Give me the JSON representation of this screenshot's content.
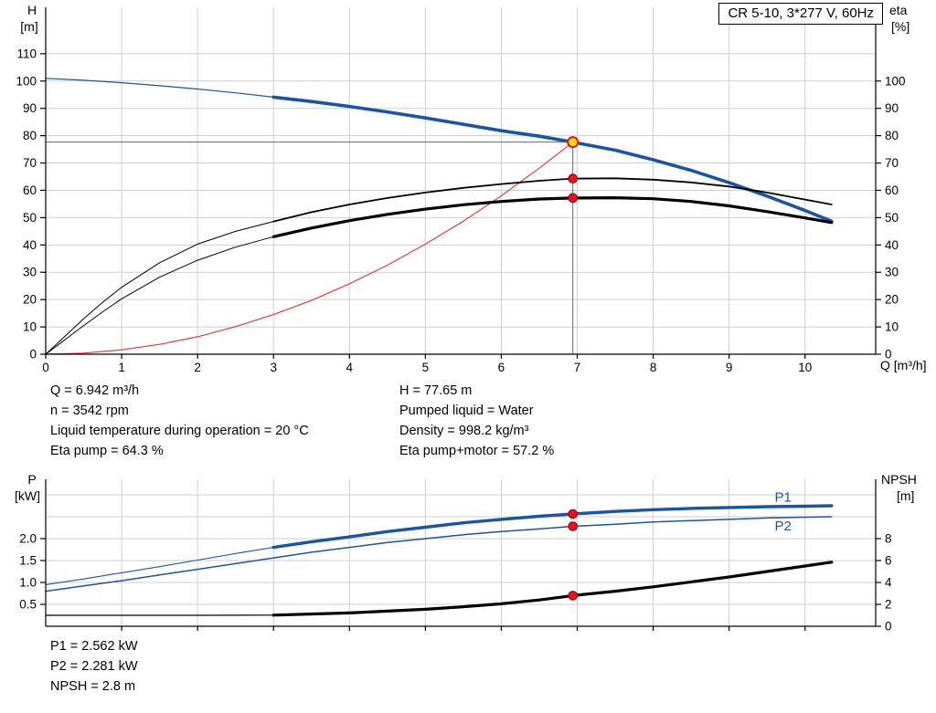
{
  "title_box": "CR 5-10, 3*277 V, 60Hz",
  "info_top": {
    "left": [
      "Q = 6.942 m³/h",
      "n = 3542 rpm",
      "Liquid temperature during operation = 20 °C",
      "Eta pump = 64.3 %"
    ],
    "right": [
      "H = 77.65 m",
      "Pumped liquid = Water",
      "Density = 998.2 kg/m³",
      "Eta pump+motor = 57.2 %"
    ]
  },
  "info_bottom": [
    "P1 = 2.562 kW",
    "P2 = 2.281 kW",
    "NPSH = 2.8 m"
  ],
  "colors": {
    "curve_blue": "#1b55a0",
    "curve_red": "#d84040",
    "dot_red": "#e8111c",
    "dot_ring": "#8f0008",
    "duty_yellow": "#ffe100",
    "grid": "#cfcfcf",
    "axis": "#000000",
    "crosshair": "#666666"
  },
  "chart_data": [
    {
      "id": "top",
      "type": "line",
      "title": "CR 5-10, 3*277 V, 60Hz",
      "x_axis": {
        "title": "Q [m³/h]",
        "lim": [
          0,
          10.93
        ],
        "grid": [
          1,
          2,
          3,
          4,
          5,
          6,
          7,
          8,
          9,
          10
        ],
        "ticks": {
          "values": [
            0,
            1,
            2,
            3,
            4,
            5,
            6,
            7,
            8,
            9,
            10
          ],
          "labels": [
            "0",
            "1",
            "2",
            "3",
            "4",
            "5",
            "6",
            "7",
            "8",
            "9",
            "10"
          ]
        }
      },
      "y_left": {
        "title": [
          "H",
          "[m]"
        ],
        "lim": [
          0,
          127
        ],
        "grid": [
          10,
          20,
          30,
          40,
          50,
          60,
          70,
          80,
          90,
          100,
          110
        ],
        "ticks": {
          "values": [
            0,
            10,
            20,
            30,
            40,
            50,
            60,
            70,
            80,
            90,
            100,
            110
          ],
          "labels": [
            "0",
            "10",
            "20",
            "30",
            "40",
            "50",
            "60",
            "70",
            "80",
            "90",
            "100",
            "110"
          ]
        }
      },
      "y_right": {
        "title": [
          "eta",
          "[%]"
        ],
        "lim": [
          0,
          127
        ],
        "ticks": {
          "values": [
            0,
            10,
            20,
            30,
            40,
            50,
            60,
            70,
            80,
            90,
            100
          ],
          "labels": [
            "0",
            "10",
            "20",
            "30",
            "40",
            "50",
            "60",
            "70",
            "80",
            "90",
            "100"
          ]
        }
      },
      "crosshair": {
        "x": 6.942,
        "y": 77.65
      },
      "series": [
        {
          "name": "head-curve-lead",
          "axis": "left",
          "color": "#1b55a0",
          "width": 1.2,
          "points": [
            [
              0,
              101
            ],
            [
              0.5,
              100.3
            ],
            [
              1,
              99.4
            ],
            [
              1.5,
              98.3
            ],
            [
              2,
              97.1
            ],
            [
              2.5,
              95.7
            ],
            [
              3,
              94.1
            ]
          ]
        },
        {
          "name": "head-curve",
          "axis": "left",
          "color": "#1b55a0",
          "width": 3.6,
          "points": [
            [
              3,
              94.1
            ],
            [
              3.5,
              92.5
            ],
            [
              4,
              90.7
            ],
            [
              4.5,
              88.7
            ],
            [
              5,
              86.5
            ],
            [
              5.5,
              84.2
            ],
            [
              6,
              81.8
            ],
            [
              6.5,
              79.8
            ],
            [
              6.942,
              77.65
            ],
            [
              7.5,
              74.7
            ],
            [
              8,
              71.2
            ],
            [
              8.5,
              67.3
            ],
            [
              9,
              62.8
            ],
            [
              9.5,
              57.9
            ],
            [
              10,
              52.6
            ],
            [
              10.35,
              48.7
            ]
          ]
        },
        {
          "name": "system-curve",
          "axis": "left",
          "color": "#d84040",
          "width": 1.2,
          "points": [
            [
              0,
              0
            ],
            [
              0.5,
              0.4
            ],
            [
              1,
              1.6
            ],
            [
              1.5,
              3.6
            ],
            [
              2,
              6.4
            ],
            [
              2.5,
              10.1
            ],
            [
              3,
              14.5
            ],
            [
              3.5,
              19.7
            ],
            [
              4,
              25.8
            ],
            [
              4.5,
              32.6
            ],
            [
              5,
              40.3
            ],
            [
              5.5,
              48.7
            ],
            [
              6,
              58.0
            ],
            [
              6.5,
              68.1
            ],
            [
              6.942,
              77.65
            ]
          ]
        },
        {
          "name": "eta-pump-lead",
          "axis": "right",
          "color": "#000000",
          "width": 1,
          "points": [
            [
              0,
              0
            ],
            [
              0.25,
              6.5
            ],
            [
              0.5,
              13
            ],
            [
              0.75,
              19
            ],
            [
              1,
              24.5
            ],
            [
              1.5,
              33.5
            ],
            [
              2,
              40.3
            ],
            [
              2.5,
              45
            ],
            [
              3,
              48.6
            ]
          ]
        },
        {
          "name": "eta-pump",
          "axis": "right",
          "color": "#000000",
          "width": 1.8,
          "points": [
            [
              3,
              48.6
            ],
            [
              3.5,
              52
            ],
            [
              4,
              54.8
            ],
            [
              4.5,
              57.2
            ],
            [
              5,
              59.2
            ],
            [
              5.5,
              60.9
            ],
            [
              6,
              62.3
            ],
            [
              6.5,
              63.5
            ],
            [
              6.942,
              64.3
            ],
            [
              7.5,
              64.4
            ],
            [
              8,
              63.9
            ],
            [
              8.5,
              62.9
            ],
            [
              9,
              61.4
            ],
            [
              9.5,
              59.2
            ],
            [
              10,
              56.6
            ],
            [
              10.35,
              54.8
            ]
          ]
        },
        {
          "name": "eta-pump-motor-lead",
          "axis": "right",
          "color": "#000000",
          "width": 1,
          "points": [
            [
              0,
              0
            ],
            [
              0.25,
              5.2
            ],
            [
              0.5,
              10.5
            ],
            [
              0.75,
              15.5
            ],
            [
              1,
              20.3
            ],
            [
              1.5,
              28.2
            ],
            [
              2,
              34.4
            ],
            [
              2.5,
              39.2
            ],
            [
              3,
              43
            ]
          ]
        },
        {
          "name": "eta-pump-motor",
          "axis": "right",
          "color": "#000000",
          "width": 3.2,
          "points": [
            [
              3,
              43
            ],
            [
              3.5,
              46.2
            ],
            [
              4,
              48.9
            ],
            [
              4.5,
              51.2
            ],
            [
              5,
              53.1
            ],
            [
              5.5,
              54.7
            ],
            [
              6,
              55.9
            ],
            [
              6.5,
              56.8
            ],
            [
              6.942,
              57.2
            ],
            [
              7.5,
              57.3
            ],
            [
              8,
              56.9
            ],
            [
              8.5,
              55.9
            ],
            [
              9,
              54.3
            ],
            [
              9.5,
              52.2
            ],
            [
              10,
              49.9
            ],
            [
              10.35,
              48.2
            ]
          ]
        }
      ],
      "markers": [
        {
          "name": "duty-point",
          "x": 6.942,
          "y": 77.65,
          "axis": "left",
          "r": 5.5,
          "fill": "#ffe100",
          "stroke": "#e8111c",
          "sw": 2
        },
        {
          "name": "eta-pump-point",
          "x": 6.942,
          "y": 64.3,
          "axis": "right",
          "r": 4.8,
          "fill": "#e8111c",
          "stroke": "#8f0008",
          "sw": 1
        },
        {
          "name": "eta-pump-motor-point",
          "x": 6.942,
          "y": 57.2,
          "axis": "right",
          "r": 4.8,
          "fill": "#e8111c",
          "stroke": "#8f0008",
          "sw": 1
        }
      ]
    },
    {
      "id": "bottom",
      "type": "line",
      "x_axis": {
        "title": "",
        "lim": [
          0,
          10.93
        ],
        "grid": [
          1,
          2,
          3,
          4,
          5,
          6,
          7,
          8,
          9,
          10
        ],
        "ticks": {
          "values": [
            1,
            2,
            3,
            4,
            5,
            6,
            7,
            8,
            9,
            10
          ],
          "labels": []
        }
      },
      "y_left": {
        "title": [
          "P",
          "[kW]"
        ],
        "lim": [
          0,
          3.354
        ],
        "grid": [
          0.5,
          1,
          1.5,
          2,
          2.5,
          3
        ],
        "ticks": {
          "values": [
            0.5,
            1,
            1.5,
            2
          ],
          "labels": [
            "0.5",
            "1.0",
            "1.5",
            "2.0"
          ]
        }
      },
      "y_right": {
        "title": [
          "NPSH",
          "[m]"
        ],
        "lim": [
          0,
          13.42
        ],
        "ticks": {
          "values": [
            0,
            2,
            4,
            6,
            8
          ],
          "labels": [
            "0",
            "2",
            "4",
            "6",
            "8"
          ]
        }
      },
      "series": [
        {
          "name": "p1-lead",
          "axis": "left",
          "color": "#1b55a0",
          "width": 1.1,
          "points": [
            [
              0,
              0.95
            ],
            [
              0.5,
              1.08
            ],
            [
              1,
              1.22
            ],
            [
              1.5,
              1.36
            ],
            [
              2,
              1.51
            ],
            [
              2.5,
              1.66
            ],
            [
              3,
              1.8
            ]
          ]
        },
        {
          "name": "p1",
          "axis": "left",
          "color": "#1b55a0",
          "width": 3.4,
          "points": [
            [
              3,
              1.8
            ],
            [
              3.5,
              1.93
            ],
            [
              4,
              2.04
            ],
            [
              4.5,
              2.16
            ],
            [
              5,
              2.26
            ],
            [
              5.5,
              2.36
            ],
            [
              6,
              2.44
            ],
            [
              6.5,
              2.51
            ],
            [
              6.942,
              2.562
            ],
            [
              7.5,
              2.62
            ],
            [
              8,
              2.66
            ],
            [
              8.5,
              2.69
            ],
            [
              9,
              2.71
            ],
            [
              9.5,
              2.73
            ],
            [
              10,
              2.74
            ],
            [
              10.35,
              2.75
            ]
          ]
        },
        {
          "name": "p2",
          "axis": "left",
          "color": "#1b55a0",
          "width": 1.5,
          "points": [
            [
              0,
              0.8
            ],
            [
              0.5,
              0.92
            ],
            [
              1,
              1.04
            ],
            [
              1.5,
              1.17
            ],
            [
              2,
              1.3
            ],
            [
              2.5,
              1.43
            ],
            [
              3,
              1.56
            ],
            [
              3.5,
              1.69
            ],
            [
              4,
              1.8
            ],
            [
              4.5,
              1.91
            ],
            [
              5,
              2.0
            ],
            [
              5.5,
              2.09
            ],
            [
              6,
              2.16
            ],
            [
              6.5,
              2.22
            ],
            [
              6.942,
              2.281
            ],
            [
              7.5,
              2.33
            ],
            [
              8,
              2.38
            ],
            [
              8.5,
              2.41
            ],
            [
              9,
              2.44
            ],
            [
              9.5,
              2.47
            ],
            [
              10,
              2.49
            ],
            [
              10.35,
              2.5
            ]
          ]
        },
        {
          "name": "npsh-lead",
          "axis": "right",
          "color": "#000000",
          "width": 1.2,
          "points": [
            [
              0,
              1.0
            ],
            [
              1,
              1.0
            ],
            [
              2,
              1.0
            ],
            [
              3,
              1.02
            ]
          ]
        },
        {
          "name": "npsh",
          "axis": "right",
          "color": "#000000",
          "width": 3.2,
          "points": [
            [
              3,
              1.02
            ],
            [
              4,
              1.22
            ],
            [
              5,
              1.55
            ],
            [
              5.5,
              1.78
            ],
            [
              6,
              2.05
            ],
            [
              6.5,
              2.4
            ],
            [
              6.942,
              2.8
            ],
            [
              7.5,
              3.2
            ],
            [
              8,
              3.6
            ],
            [
              8.5,
              4.05
            ],
            [
              9,
              4.5
            ],
            [
              9.5,
              5.0
            ],
            [
              10,
              5.5
            ],
            [
              10.35,
              5.85
            ]
          ]
        }
      ],
      "markers": [
        {
          "name": "p1-point",
          "x": 6.942,
          "y": 2.562,
          "axis": "left",
          "r": 4.8,
          "fill": "#e8111c",
          "stroke": "#8f0008",
          "sw": 1
        },
        {
          "name": "p2-point",
          "x": 6.942,
          "y": 2.281,
          "axis": "left",
          "r": 4.8,
          "fill": "#e8111c",
          "stroke": "#8f0008",
          "sw": 1
        },
        {
          "name": "npsh-point",
          "x": 6.942,
          "y": 2.8,
          "axis": "right",
          "r": 4.8,
          "fill": "#e8111c",
          "stroke": "#8f0008",
          "sw": 1
        }
      ],
      "annotations": [
        {
          "text": "P1",
          "x": 9.6,
          "y": 2.84,
          "axis": "left",
          "color": "#1b55a0"
        },
        {
          "text": "P2",
          "x": 9.6,
          "y": 2.19,
          "axis": "left",
          "color": "#1b55a0"
        }
      ]
    }
  ]
}
